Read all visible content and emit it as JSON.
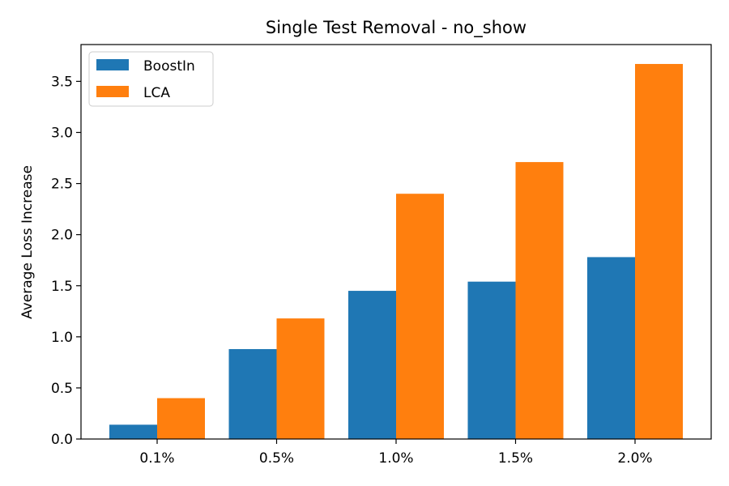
{
  "chart_data": {
    "type": "bar",
    "title": "Single Test Removal - no_show",
    "xlabel": "",
    "ylabel": "Average Loss Increase",
    "categories": [
      "0.1%",
      "0.5%",
      "1.0%",
      "1.5%",
      "2.0%"
    ],
    "series": [
      {
        "name": "BoostIn",
        "color": "#1f77b4",
        "values": [
          0.14,
          0.88,
          1.45,
          1.54,
          1.78
        ]
      },
      {
        "name": "LCA",
        "color": "#ff7f0e",
        "values": [
          0.4,
          1.18,
          2.4,
          2.71,
          3.67
        ]
      }
    ],
    "ylim": [
      0,
      3.86
    ],
    "yticks": [
      "0.0",
      "0.5",
      "1.0",
      "1.5",
      "2.0",
      "2.5",
      "3.0",
      "3.5"
    ],
    "legend_position": "top-left",
    "grid": false
  }
}
